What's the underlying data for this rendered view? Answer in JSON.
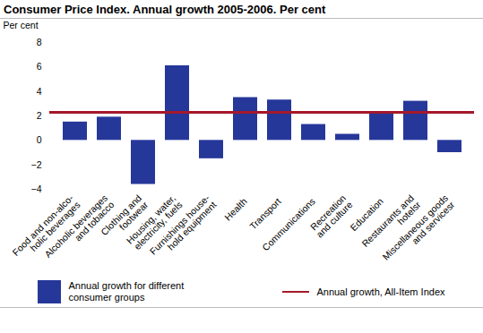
{
  "chart_data": {
    "type": "bar",
    "title": "Consumer Price Index. Annual growth 2005-2006. Per cent",
    "y_label": "Per cent",
    "categories": [
      "Food and non-alco-\nholic beverages",
      "Alcoholic beverages\nand tobacco",
      "Clothing and\nfootwear",
      "Housing, water,\nelectricity, fuels",
      "Furnishings house-\nhold equipment",
      "Health",
      "Transport",
      "Communications",
      "Recreation\nand culture",
      "Education",
      "Restaurants and\nhotelsr",
      "Miscellaneous goods\nand servicesr"
    ],
    "series": [
      {
        "name": "Annual growth for different consumer groups",
        "type": "bar",
        "color": "#26379a",
        "values": [
          1.5,
          1.9,
          -3.6,
          6.1,
          -1.5,
          3.5,
          3.3,
          1.3,
          0.5,
          2.2,
          3.2,
          -1.0
        ]
      },
      {
        "name": "Annual growth, All-Item Index",
        "type": "line",
        "color": "#a3192a",
        "values": [
          2.3,
          2.3,
          2.3,
          2.3,
          2.3,
          2.3,
          2.3,
          2.3,
          2.3,
          2.3,
          2.3,
          2.3
        ]
      }
    ],
    "ylim": [
      -4,
      8
    ],
    "yticks": [
      -4,
      -2,
      0,
      2,
      4,
      6,
      8
    ],
    "grid": false
  }
}
